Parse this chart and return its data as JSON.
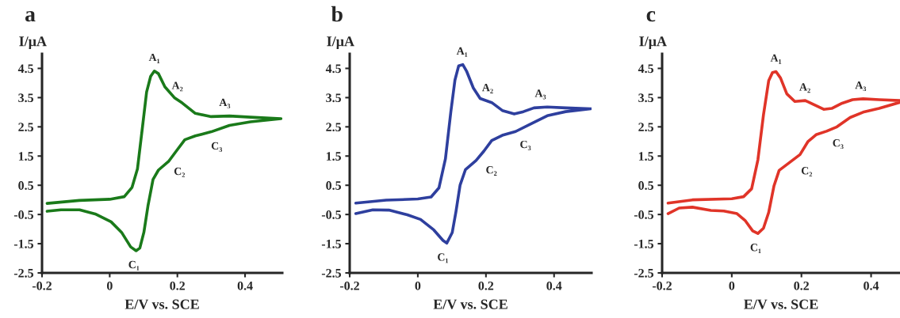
{
  "chart_data": [
    {
      "type": "line",
      "title": "a",
      "xlabel": "E/V vs. SCE",
      "ylabel": "I/μA",
      "xlim": [
        -0.2,
        0.51
      ],
      "ylim": [
        -2.5,
        5.0
      ],
      "xticks": [
        -0.2,
        0,
        0.2,
        0.4
      ],
      "yticks": [
        -2.5,
        -1.5,
        -0.5,
        0.5,
        1.5,
        2.5,
        3.5,
        4.5
      ],
      "grid": false,
      "legend": false,
      "marker": "none",
      "line_style": "solid",
      "series": [
        {
          "color": "#1a7a1a",
          "x": [
            -0.185,
            -0.09,
            0,
            0.043,
            0.066,
            0.082,
            0.097,
            0.109,
            0.121,
            0.132,
            0.144,
            0.163,
            0.191,
            0.214,
            0.253,
            0.3,
            0.354,
            0.416,
            0.506,
            0.416,
            0.354,
            0.3,
            0.253,
            0.222,
            0.198,
            0.175,
            0.144,
            0.128,
            0.113,
            0.101,
            0.089,
            0.078,
            0.062,
            0.035,
            0.004,
            -0.043,
            -0.089,
            -0.144,
            -0.185
          ],
          "values": [
            -0.12,
            -0.02,
            0.02,
            0.11,
            0.43,
            1.06,
            2.51,
            3.69,
            4.23,
            4.41,
            4.32,
            3.87,
            3.5,
            3.32,
            2.96,
            2.85,
            2.87,
            2.83,
            2.78,
            2.67,
            2.55,
            2.33,
            2.19,
            2.06,
            1.69,
            1.33,
            1.02,
            0.7,
            -0.21,
            -1.11,
            -1.65,
            -1.74,
            -1.61,
            -1.11,
            -0.75,
            -0.48,
            -0.34,
            -0.34,
            -0.39
          ]
        }
      ],
      "annotations": [
        {
          "text": "A₁",
          "x": 0.132,
          "y": 4.41
        },
        {
          "text": "A₂",
          "x": 0.2,
          "y": 3.45
        },
        {
          "text": "A₃",
          "x": 0.34,
          "y": 2.87
        },
        {
          "text": "C₁",
          "x": 0.078,
          "y": -1.74
        },
        {
          "text": "C₂",
          "x": 0.17,
          "y": 1.38
        },
        {
          "text": "C₃",
          "x": 0.28,
          "y": 2.25
        }
      ]
    },
    {
      "type": "line",
      "title": "b",
      "xlabel": "E/V vs. SCE",
      "ylabel": "I/μA",
      "xlim": [
        -0.2,
        0.51
      ],
      "ylim": [
        -2.5,
        5.0
      ],
      "xticks": [
        -0.2,
        0,
        0.2,
        0.4
      ],
      "yticks": [
        -2.5,
        -1.5,
        -0.5,
        0.5,
        1.5,
        2.5,
        3.5,
        4.5
      ],
      "grid": false,
      "legend": false,
      "marker": "none",
      "line_style": "solid",
      "series": [
        {
          "color": "#2e3f9e",
          "x": [
            -0.182,
            -0.093,
            0,
            0.039,
            0.062,
            0.081,
            0.097,
            0.109,
            0.12,
            0.132,
            0.143,
            0.163,
            0.183,
            0.217,
            0.248,
            0.283,
            0.31,
            0.341,
            0.38,
            0.434,
            0.508,
            0.434,
            0.38,
            0.333,
            0.287,
            0.248,
            0.217,
            0.194,
            0.171,
            0.14,
            0.124,
            0.112,
            0.101,
            0.085,
            0.074,
            0.047,
            0.008,
            -0.031,
            -0.085,
            -0.132,
            -0.182
          ],
          "values": [
            -0.11,
            -0.01,
            0.03,
            0.1,
            0.41,
            1.4,
            3.02,
            4.1,
            4.59,
            4.63,
            4.41,
            3.83,
            3.47,
            3.33,
            3.06,
            2.94,
            3.02,
            3.15,
            3.18,
            3.15,
            3.12,
            3.02,
            2.88,
            2.61,
            2.34,
            2.21,
            2.03,
            1.67,
            1.35,
            1.04,
            0.5,
            -0.4,
            -1.12,
            -1.48,
            -1.39,
            -1.03,
            -0.67,
            -0.51,
            -0.35,
            -0.34,
            -0.47
          ]
        }
      ],
      "annotations": [
        {
          "text": "A₁",
          "x": 0.13,
          "y": 4.63
        },
        {
          "text": "A₂",
          "x": 0.205,
          "y": 3.38
        },
        {
          "text": "A₃",
          "x": 0.36,
          "y": 3.18
        },
        {
          "text": "C₁",
          "x": 0.08,
          "y": -1.48
        },
        {
          "text": "C₂",
          "x": 0.18,
          "y": 1.43
        },
        {
          "text": "C₃",
          "x": 0.28,
          "y": 2.3
        }
      ]
    },
    {
      "type": "line",
      "title": "c",
      "xlabel": "E/V vs. SCE",
      "ylabel": "I/μA",
      "xlim": [
        -0.2,
        0.483
      ],
      "ylim": [
        -2.5,
        5.0
      ],
      "xticks": [
        -0.2,
        0,
        0.2,
        0.4
      ],
      "yticks": [
        -2.5,
        -1.5,
        -0.5,
        0.5,
        1.5,
        2.5,
        3.5,
        4.5
      ],
      "grid": false,
      "legend": false,
      "marker": "none",
      "line_style": "solid",
      "series": [
        {
          "color": "#e03428",
          "x": [
            -0.183,
            -0.113,
            0,
            0.034,
            0.057,
            0.075,
            0.091,
            0.106,
            0.117,
            0.127,
            0.14,
            0.158,
            0.181,
            0.211,
            0.234,
            0.264,
            0.287,
            0.317,
            0.347,
            0.377,
            0.423,
            0.483,
            0.483,
            0.423,
            0.377,
            0.34,
            0.302,
            0.272,
            0.242,
            0.219,
            0.196,
            0.166,
            0.136,
            0.121,
            0.106,
            0.091,
            0.075,
            0.06,
            0.038,
            0.015,
            -0.023,
            -0.06,
            -0.113,
            -0.151,
            -0.183
          ],
          "values": [
            -0.11,
            0.0,
            0.04,
            0.11,
            0.38,
            1.37,
            2.91,
            4.08,
            4.36,
            4.39,
            4.17,
            3.63,
            3.37,
            3.4,
            3.27,
            3.1,
            3.13,
            3.31,
            3.43,
            3.46,
            3.43,
            3.4,
            3.34,
            3.13,
            3.0,
            2.82,
            2.5,
            2.35,
            2.23,
            2.0,
            1.55,
            1.28,
            1.01,
            0.47,
            -0.43,
            -0.97,
            -1.15,
            -1.06,
            -0.7,
            -0.47,
            -0.38,
            -0.36,
            -0.25,
            -0.28,
            -0.47
          ]
        }
      ],
      "annotations": [
        {
          "text": "A₁",
          "x": 0.127,
          "y": 4.39
        },
        {
          "text": "A₂",
          "x": 0.21,
          "y": 3.4
        },
        {
          "text": "A₃",
          "x": 0.37,
          "y": 3.46
        },
        {
          "text": "C₁",
          "x": 0.075,
          "y": -1.15
        },
        {
          "text": "C₂",
          "x": 0.18,
          "y": 1.4
        },
        {
          "text": "C₃",
          "x": 0.27,
          "y": 2.35
        }
      ]
    }
  ]
}
